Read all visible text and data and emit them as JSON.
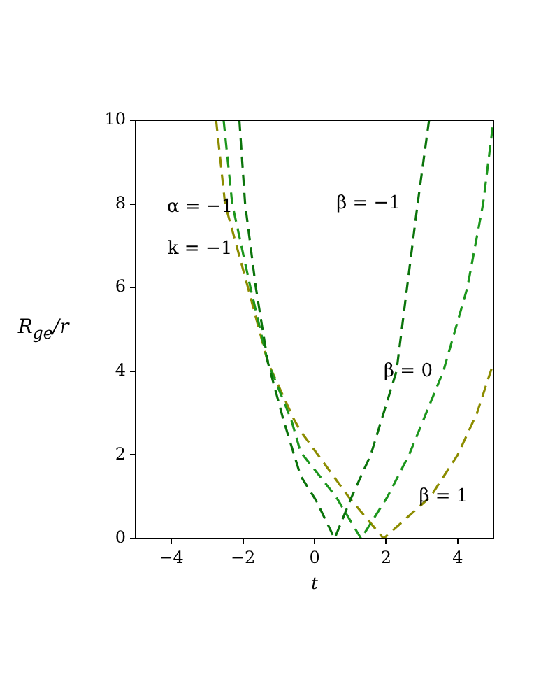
{
  "chart_data": {
    "type": "line",
    "xlabel": "t",
    "ylabel": "R$_{ge}$/r",
    "xlim": [
      -5,
      5
    ],
    "ylim": [
      0,
      10
    ],
    "xticks": [
      -4,
      -2,
      0,
      2,
      4
    ],
    "yticks": [
      0,
      2,
      4,
      6,
      8,
      10
    ],
    "grid": false,
    "legend": false,
    "marker": "none",
    "line_style": "dashed",
    "series": [
      {
        "name": "β = −1",
        "color": "#0a730a",
        "x": [
          -2.1,
          -1.94,
          -1.64,
          -1.3,
          -0.87,
          -0.39,
          0.05,
          0.56,
          1.04,
          1.57,
          2.29,
          2.88,
          3.2
        ],
        "values": [
          10,
          8,
          6,
          4.2,
          2.84,
          1.5,
          0.9,
          0,
          1,
          2,
          4,
          8,
          10
        ]
      },
      {
        "name": "β = 0",
        "color": "#1c961c",
        "x": [
          -2.54,
          -2.3,
          -1.79,
          -1.3,
          -0.65,
          -0.39,
          0.6,
          1.3,
          2.04,
          2.64,
          3.6,
          4.27,
          4.71,
          5
        ],
        "values": [
          10,
          8,
          6,
          4.2,
          2.84,
          2.07,
          1,
          0,
          1,
          2,
          4,
          6,
          8,
          10
        ]
      },
      {
        "name": "β = 1",
        "color": "#8c8c00",
        "x": [
          -2.75,
          -2.5,
          -1.86,
          -1.3,
          -0.57,
          -0.39,
          0.95,
          1.93,
          3.24,
          4.0,
          4.54,
          5
        ],
        "values": [
          10,
          8,
          6,
          4.2,
          2.84,
          2.57,
          1,
          0,
          1,
          2,
          3,
          4.2
        ]
      }
    ],
    "annotations": [
      "α = −1",
      "k = −1"
    ]
  }
}
